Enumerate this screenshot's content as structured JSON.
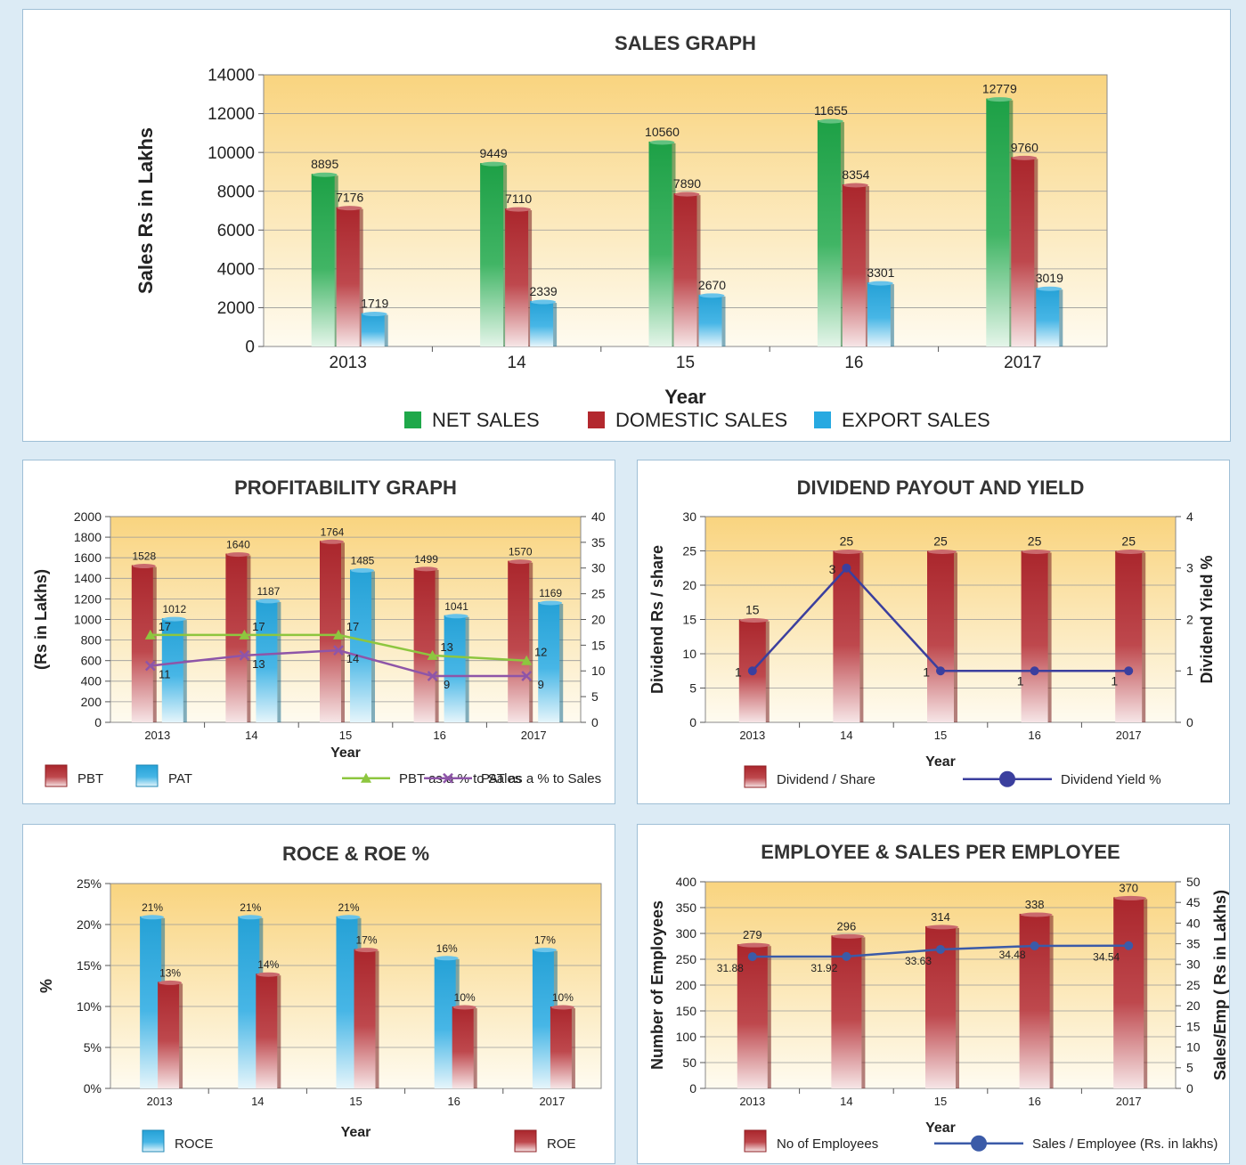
{
  "colors": {
    "net_sales": "#1fa84a",
    "domestic_sales": "#b3282e",
    "export_sales": "#27a9e1",
    "plot_bg_top": "#f9d47f",
    "plot_bg_bottom": "#fefbf0",
    "pbt_pct_line": "#8dc63f",
    "pat_pct_line": "#8e55a8",
    "dividend_yield_line": "#3b3f9e",
    "sales_per_employee_line": "#3b5ba8"
  },
  "chart_data": [
    {
      "id": "sales",
      "type": "bar",
      "title": "SALES GRAPH",
      "xlabel": "Year",
      "ylabel": "Sales Rs in Lakhs",
      "ylim": [
        0,
        14000
      ],
      "yticks": [
        "0",
        "2000",
        "4000",
        "6000",
        "8000",
        "10000",
        "12000",
        "14000"
      ],
      "categories": [
        "2013",
        "14",
        "15",
        "16",
        "2017"
      ],
      "grid": true,
      "legend_position": "bottom",
      "series": [
        {
          "name": "NET SALES",
          "color_key": "net_sales",
          "values": [
            8895,
            9449,
            10560,
            11655,
            12779
          ],
          "labels": [
            "8895",
            "9449",
            "10560",
            "11655",
            "12779"
          ]
        },
        {
          "name": "DOMESTIC SALES",
          "color_key": "domestic_sales",
          "values": [
            7176,
            7110,
            7890,
            8354,
            9760
          ],
          "labels": [
            "7176",
            "7110",
            "7890",
            "8354",
            "9760"
          ]
        },
        {
          "name": "EXPORT SALES",
          "color_key": "export_sales",
          "values": [
            1719,
            2339,
            2670,
            3301,
            3019
          ],
          "labels": [
            "1719",
            "2339",
            "2670",
            "3301",
            "3019"
          ]
        }
      ]
    },
    {
      "id": "profitability",
      "type": "bar",
      "title": "PROFITABILITY GRAPH",
      "xlabel": "Year",
      "ylabel": "(Rs in Lakhs)",
      "ylim": [
        0,
        2000
      ],
      "yticks": [
        "0",
        "200",
        "400",
        "600",
        "800",
        "1000",
        "1200",
        "1400",
        "1600",
        "1800",
        "2000"
      ],
      "y2lim": [
        0,
        40
      ],
      "y2ticks": [
        "0",
        "5",
        "10",
        "15",
        "20",
        "25",
        "30",
        "35",
        "40"
      ],
      "categories": [
        "2013",
        "14",
        "15",
        "16",
        "2017"
      ],
      "grid": true,
      "legend_position": "bottom",
      "series": [
        {
          "name": "PBT",
          "color_key": "domestic_sales",
          "values": [
            1528,
            1640,
            1764,
            1499,
            1570
          ],
          "labels": [
            "1528",
            "1640",
            "1764",
            "1499",
            "1570"
          ]
        },
        {
          "name": "PAT",
          "color_key": "export_sales",
          "values": [
            1012,
            1187,
            1485,
            1041,
            1169
          ],
          "labels": [
            "1012",
            "1187",
            "1485",
            "1041",
            "1169"
          ]
        },
        {
          "name": "PBT as a % to Sales",
          "type": "line",
          "axis": "right",
          "marker": "triangle",
          "color_key": "pbt_pct_line",
          "values": [
            17,
            17,
            17,
            13,
            12
          ],
          "labels": [
            "17",
            "17",
            "17",
            "13",
            "12"
          ]
        },
        {
          "name": "PAT as a % to Sales",
          "type": "line",
          "axis": "right",
          "marker": "x",
          "color_key": "pat_pct_line",
          "values": [
            11,
            13,
            14,
            9,
            9
          ],
          "labels": [
            "11",
            "13",
            "14",
            "9",
            "9"
          ]
        }
      ]
    },
    {
      "id": "dividend",
      "type": "bar",
      "title": "DIVIDEND PAYOUT AND YIELD",
      "xlabel": "Year",
      "ylabel": "Dividend Rs / share",
      "y2label": "Dividend Yield %",
      "ylim": [
        0,
        30
      ],
      "yticks": [
        "0",
        "5",
        "10",
        "15",
        "20",
        "25",
        "30"
      ],
      "y2lim": [
        0,
        4
      ],
      "y2ticks": [
        "0",
        "1",
        "2",
        "3",
        "4"
      ],
      "categories": [
        "2013",
        "14",
        "15",
        "16",
        "2017"
      ],
      "grid": true,
      "legend_position": "bottom",
      "series": [
        {
          "name": "Dividend / Share",
          "color_key": "domestic_sales",
          "values": [
            15,
            25,
            25,
            25,
            25
          ],
          "labels": [
            "15",
            "25",
            "25",
            "25",
            "25"
          ]
        },
        {
          "name": "Dividend Yield %",
          "type": "line",
          "axis": "right",
          "marker": "circle",
          "color_key": "dividend_yield_line",
          "values": [
            1,
            3,
            1,
            1,
            1
          ],
          "labels": [
            "1",
            "3",
            "1",
            "1",
            "1"
          ]
        }
      ]
    },
    {
      "id": "roce",
      "type": "bar",
      "title": "ROCE & ROE %",
      "xlabel": "Year",
      "ylabel": "%",
      "ylim": [
        0,
        25
      ],
      "yticks": [
        "0%",
        "5%",
        "10%",
        "15%",
        "20%",
        "25%"
      ],
      "categories": [
        "2013",
        "14",
        "15",
        "16",
        "2017"
      ],
      "grid": true,
      "legend_position": "bottom",
      "series": [
        {
          "name": "ROCE",
          "color_key": "export_sales",
          "values": [
            21,
            21,
            21,
            16,
            17
          ],
          "labels": [
            "21%",
            "21%",
            "21%",
            "16%",
            "17%"
          ]
        },
        {
          "name": "ROE",
          "color_key": "domestic_sales",
          "values": [
            13,
            14,
            17,
            10,
            10
          ],
          "labels": [
            "13%",
            "14%",
            "17%",
            "10%",
            "10%"
          ]
        }
      ]
    },
    {
      "id": "employee",
      "type": "bar",
      "title": "EMPLOYEE & SALES PER EMPLOYEE",
      "xlabel": "Year",
      "ylabel": "Number of Employees",
      "y2label": "Sales/Emp ( Rs in Lakhs)",
      "ylim": [
        0,
        400
      ],
      "yticks": [
        "0",
        "50",
        "100",
        "150",
        "200",
        "250",
        "300",
        "350",
        "400"
      ],
      "y2lim": [
        0,
        50
      ],
      "y2ticks": [
        "0",
        "5",
        "10",
        "15",
        "20",
        "25",
        "30",
        "35",
        "40",
        "45",
        "50"
      ],
      "categories": [
        "2013",
        "14",
        "15",
        "16",
        "2017"
      ],
      "grid": true,
      "legend_position": "bottom",
      "series": [
        {
          "name": "No of Employees",
          "color_key": "domestic_sales",
          "values": [
            279,
            296,
            314,
            338,
            370
          ],
          "labels": [
            "279",
            "296",
            "314",
            "338",
            "370"
          ]
        },
        {
          "name": "Sales / Employee (Rs. in lakhs)",
          "type": "line",
          "axis": "right",
          "marker": "circle",
          "color_key": "sales_per_employee_line",
          "values": [
            31.88,
            31.92,
            33.63,
            34.48,
            34.54
          ],
          "labels": [
            "31.88",
            "31.92",
            "33.63",
            "34.48",
            "34.54"
          ]
        }
      ]
    }
  ]
}
